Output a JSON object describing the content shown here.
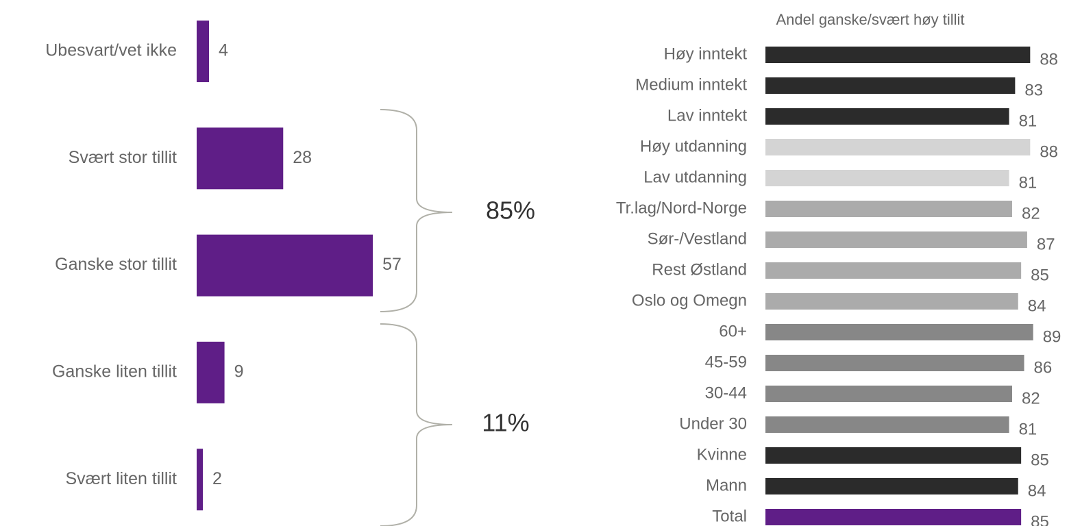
{
  "chart_data": [
    {
      "type": "hbar",
      "categories": [
        "Ubesvart/vet ikke",
        "Svært stor tillit",
        "Ganske stor tillit",
        "Ganske liten tillit",
        "Svært liten tillit"
      ],
      "values": [
        4,
        28,
        57,
        9,
        2
      ],
      "color": "#5f1e87",
      "annotations": [
        {
          "text": "85%"
        },
        {
          "text": "11%"
        }
      ]
    },
    {
      "type": "hbar",
      "title": "Andel ganske/svært høy tillit",
      "categories": [
        "Høy inntekt",
        "Medium inntekt",
        "Lav inntekt",
        "Høy utdanning",
        "Lav utdanning",
        "Tr.lag/Nord-Norge",
        "Sør-/Vestland",
        "Rest Østland",
        "Oslo og Omegn",
        "60+",
        "45-59",
        "30-44",
        "Under 30",
        "Kvinne",
        "Mann",
        "Total"
      ],
      "values": [
        88,
        83,
        81,
        88,
        81,
        82,
        87,
        85,
        84,
        89,
        86,
        82,
        81,
        85,
        84,
        85
      ],
      "colors": [
        "#2b2b2b",
        "#2b2b2b",
        "#2b2b2b",
        "#d4d4d4",
        "#d4d4d4",
        "#ababab",
        "#ababab",
        "#ababab",
        "#ababab",
        "#878787",
        "#878787",
        "#878787",
        "#878787",
        "#2b2b2b",
        "#2b2b2b",
        "#5f1e87"
      ]
    }
  ]
}
